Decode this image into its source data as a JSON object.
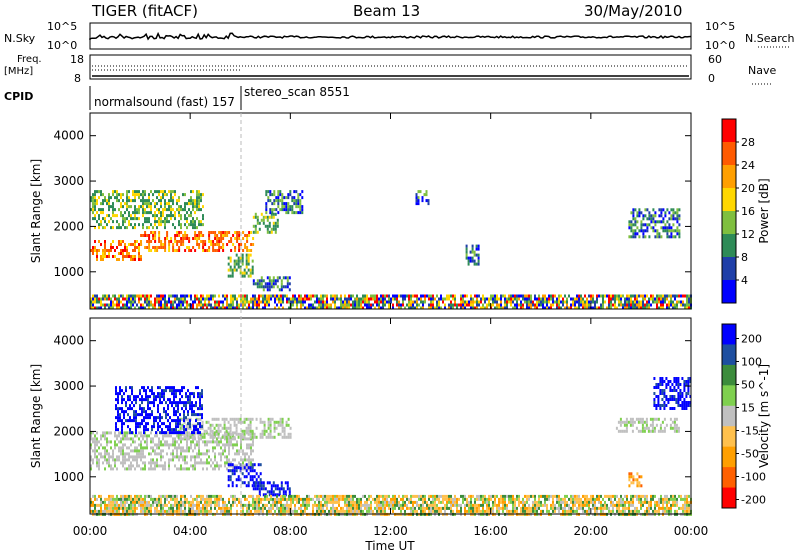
{
  "header": {
    "station": "TIGER (fitACF)",
    "beam": "Beam 13",
    "date": "30/May/2010"
  },
  "strip_labels": {
    "nsky": "N.Sky",
    "nsky_top": "10^5",
    "nsky_bottom": "10^0",
    "nsearch": "N.Search",
    "nsearch_top": "10^5",
    "nsearch_bottom": "10^0",
    "freq": "Freq.",
    "freq_unit": "[MHz]",
    "freq_top": "18",
    "freq_bottom": "8",
    "nave": "Nave",
    "nave_top": "60",
    "nave_bottom": "0",
    "cpid": "CPID",
    "mode1": "normalsound (fast) 157",
    "mode2": "stereo_scan 8551"
  },
  "colors": {
    "power_scale": [
      "#0000ff",
      "#1f3fa8",
      "#2e8b57",
      "#7fbf3f",
      "#ffd700",
      "#ff9f00",
      "#ff5a00",
      "#ff0000"
    ],
    "velocity_scale": [
      "#0000ff",
      "#1e4fa0",
      "#3c8c3c",
      "#7fd04f",
      "#c0c0c0",
      "#ffc04c",
      "#ff9f00",
      "#ff6000",
      "#ff0000"
    ]
  },
  "chart_data": [
    {
      "type": "heatmap",
      "name": "power",
      "xlabel": "",
      "ylabel": "Slant Range [km]",
      "xlim": [
        "00:00",
        "00:00"
      ],
      "ylim": [
        180,
        4500
      ],
      "yticks": [
        "1000",
        "2000",
        "3000",
        "4000"
      ],
      "colorbar_label": "Power [dB]",
      "colorbar_ticks": [
        "4",
        "8",
        "12",
        "16",
        "20",
        "24",
        "28"
      ],
      "regions": [
        {
          "t0": 0.0,
          "t1": 2.0,
          "r0": 1300,
          "r1": 1700,
          "level": "high"
        },
        {
          "t0": 2.0,
          "t1": 6.5,
          "r0": 1500,
          "r1": 1900,
          "level": "high"
        },
        {
          "t0": 6.5,
          "t1": 7.5,
          "r0": 1900,
          "r1": 2300,
          "level": "mid"
        },
        {
          "t0": 0.0,
          "t1": 4.5,
          "r0": 2000,
          "r1": 2800,
          "level": "mid"
        },
        {
          "t0": 7.0,
          "t1": 8.5,
          "r0": 2300,
          "r1": 2800,
          "level": "low"
        },
        {
          "t0": 5.5,
          "t1": 6.5,
          "r0": 900,
          "r1": 1400,
          "level": "mid"
        },
        {
          "t0": 6.5,
          "t1": 8.0,
          "r0": 600,
          "r1": 900,
          "level": "low"
        },
        {
          "t0": 15.0,
          "t1": 15.5,
          "r0": 1200,
          "r1": 1600,
          "level": "low"
        },
        {
          "t0": 13.0,
          "t1": 13.5,
          "r0": 2500,
          "r1": 2800,
          "level": "low"
        },
        {
          "t0": 21.5,
          "t1": 23.5,
          "r0": 1800,
          "r1": 2400,
          "level": "low"
        },
        {
          "t0": 0.0,
          "t1": 24.0,
          "r0": 180,
          "r1": 500,
          "level": "ground"
        }
      ]
    },
    {
      "type": "heatmap",
      "name": "velocity",
      "xlabel": "Time UT",
      "ylabel": "Slant Range [km]",
      "xlim": [
        "00:00",
        "00:00"
      ],
      "ylim": [
        180,
        4500
      ],
      "xticks": [
        "00:00",
        "04:00",
        "08:00",
        "12:00",
        "16:00",
        "20:00",
        "00:00"
      ],
      "yticks": [
        "1000",
        "2000",
        "3000",
        "4000"
      ],
      "colorbar_label": "Velocity [m s^-1]",
      "colorbar_ticks": [
        "200",
        "100",
        "50",
        "15",
        "-15",
        "-50",
        "-100",
        "-200"
      ],
      "regions": [
        {
          "t0": 0.0,
          "t1": 6.5,
          "r0": 1200,
          "r1": 2000,
          "level": "gray"
        },
        {
          "t0": 3.5,
          "t1": 8.0,
          "r0": 1900,
          "r1": 2300,
          "level": "gray"
        },
        {
          "t0": 1.0,
          "t1": 4.5,
          "r0": 2000,
          "r1": 3000,
          "level": "blue"
        },
        {
          "t0": 5.5,
          "t1": 6.8,
          "r0": 800,
          "r1": 1300,
          "level": "blue"
        },
        {
          "t0": 6.5,
          "t1": 8.0,
          "r0": 600,
          "r1": 900,
          "level": "blue"
        },
        {
          "t0": 21.0,
          "t1": 23.5,
          "r0": 2000,
          "r1": 2300,
          "level": "gray"
        },
        {
          "t0": 22.5,
          "t1": 24.0,
          "r0": 2500,
          "r1": 3200,
          "level": "blue"
        },
        {
          "t0": 21.5,
          "t1": 22.0,
          "r0": 800,
          "r1": 1100,
          "level": "orange"
        },
        {
          "t0": 0.0,
          "t1": 24.0,
          "r0": 180,
          "r1": 600,
          "level": "ground"
        }
      ]
    }
  ]
}
